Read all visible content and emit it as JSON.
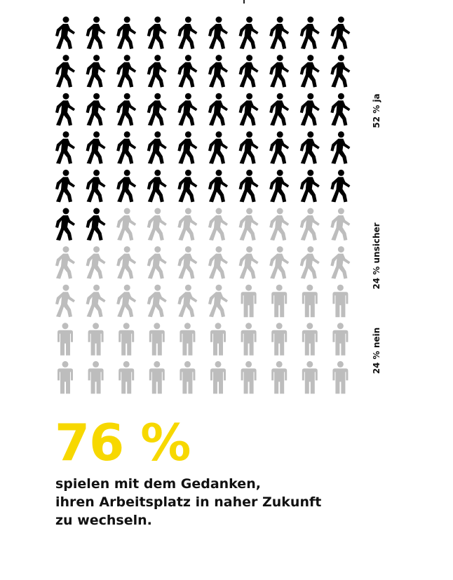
{
  "colors": {
    "ja": "#000000",
    "unsicher": "#bdbdbd",
    "nein": "#bdbdbd",
    "accent": "#f7d800"
  },
  "chart_data": {
    "type": "pictogram",
    "total_icons": 100,
    "columns": 10,
    "series": [
      {
        "name": "52 % ja",
        "value": 52,
        "icon": "walking-person-icon",
        "color": "#000000"
      },
      {
        "name": "24 % unsicher",
        "value": 24,
        "icon": "walking-person-icon",
        "color": "#bdbdbd"
      },
      {
        "name": "24 % nein",
        "value": 24,
        "icon": "standing-person-icon",
        "color": "#bdbdbd"
      }
    ]
  },
  "labels": {
    "ja": "52 % ja",
    "unsicher": "24 % unsicher",
    "nein": "24 % nein"
  },
  "headline": "76 %",
  "description": [
    "spielen mit dem Gedanken,",
    "ihren Arbeitsplatz in naher Zukunft",
    "zu wechseln."
  ]
}
